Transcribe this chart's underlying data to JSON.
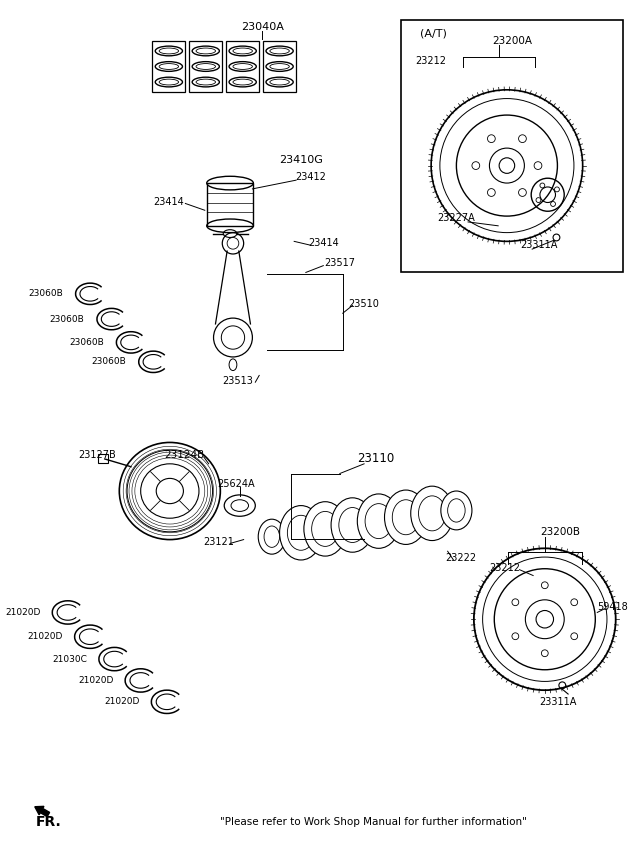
{
  "bg_color": "#ffffff",
  "footer_text": "\"Please refer to Work Shop Manual for further information\"",
  "bearing_labels_top": [
    "23060B",
    "23060B",
    "23060B",
    "23060B"
  ],
  "main_bearing_labels": [
    "21020D",
    "21020D",
    "21030C",
    "21020D",
    "21020D"
  ]
}
